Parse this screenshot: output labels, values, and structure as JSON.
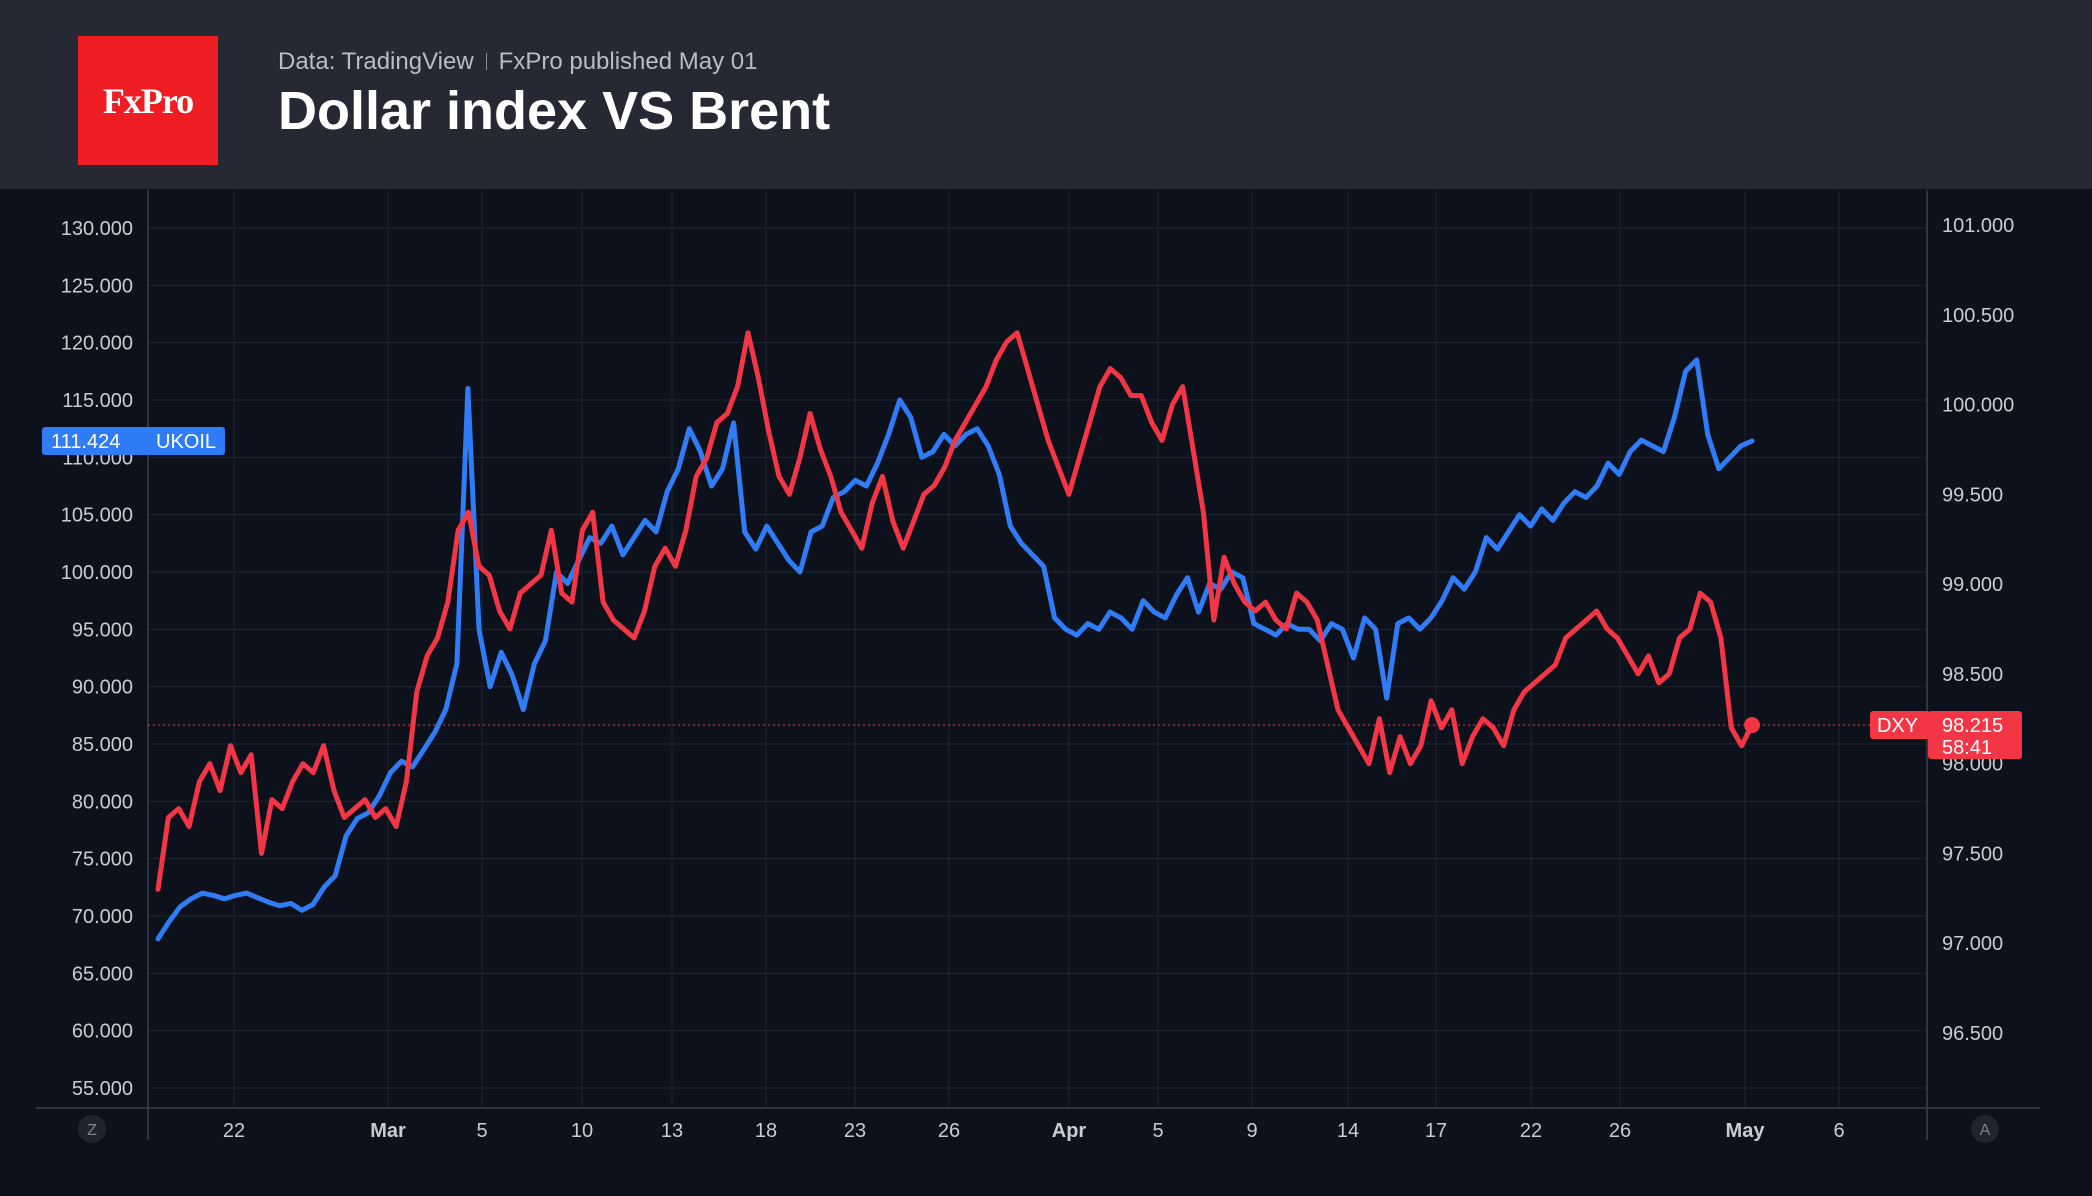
{
  "header": {
    "logo_text": "FxPro",
    "source": "Data: TradingView",
    "published": "FxPro published May 01",
    "title": "Dollar index VS Brent"
  },
  "colors": {
    "dxy": "#f23645",
    "ukoil": "#2f7cf6",
    "background": "#0c111b",
    "header": "#262933",
    "grid": "#1e2530"
  },
  "corner_buttons": {
    "left": "Z",
    "right": "A"
  },
  "chart_data": {
    "type": "line",
    "title": "Dollar index VS Brent",
    "x_ticks": [
      {
        "label": "22",
        "bold": false
      },
      {
        "label": "Mar",
        "bold": true
      },
      {
        "label": "5",
        "bold": false
      },
      {
        "label": "10",
        "bold": false
      },
      {
        "label": "13",
        "bold": false
      },
      {
        "label": "18",
        "bold": false
      },
      {
        "label": "23",
        "bold": false
      },
      {
        "label": "26",
        "bold": false
      },
      {
        "label": "Apr",
        "bold": true
      },
      {
        "label": "5",
        "bold": false
      },
      {
        "label": "9",
        "bold": false
      },
      {
        "label": "14",
        "bold": false
      },
      {
        "label": "17",
        "bold": false
      },
      {
        "label": "22",
        "bold": false
      },
      {
        "label": "26",
        "bold": false
      },
      {
        "label": "May",
        "bold": true
      },
      {
        "label": "6",
        "bold": false
      }
    ],
    "left_axis": {
      "ticks": [
        "130.000",
        "125.000",
        "120.000",
        "115.000",
        "110.000",
        "105.000",
        "100.000",
        "95.000",
        "90.000",
        "85.000",
        "80.000",
        "75.000",
        "70.000",
        "65.000",
        "60.000",
        "55.000"
      ],
      "ylim": [
        55,
        130
      ]
    },
    "right_axis": {
      "ticks": [
        "101.000",
        "100.500",
        "100.000",
        "99.500",
        "99.000",
        "98.500",
        "98.000",
        "97.500",
        "97.000",
        "96.500"
      ],
      "ylim": [
        96.5,
        101
      ]
    },
    "series": [
      {
        "name": "UKOIL",
        "axis": "left",
        "last_value": "111.424",
        "values": [
          68.0,
          69.5,
          70.8,
          71.5,
          72.0,
          71.8,
          71.5,
          71.8,
          72.0,
          71.6,
          71.2,
          70.9,
          71.1,
          70.5,
          71.0,
          72.5,
          73.5,
          77.0,
          78.5,
          79.0,
          80.5,
          82.5,
          83.5,
          83.0,
          84.5,
          86.0,
          88.0,
          92.0,
          116.0,
          95.0,
          90.0,
          93.0,
          91.0,
          88.0,
          92.0,
          94.0,
          100.0,
          99.0,
          101.0,
          103.0,
          102.5,
          104.0,
          101.5,
          103.0,
          104.5,
          103.5,
          107.0,
          109.0,
          112.5,
          110.5,
          107.5,
          109.0,
          113.0,
          103.5,
          102.0,
          104.0,
          102.5,
          101.0,
          100.0,
          103.5,
          104.0,
          106.5,
          107.0,
          108.0,
          107.5,
          109.5,
          112.0,
          115.0,
          113.5,
          110.0,
          110.5,
          112.0,
          111.0,
          112.0,
          112.5,
          111.0,
          108.5,
          104.0,
          102.5,
          101.5,
          100.5,
          96.0,
          95.0,
          94.5,
          95.5,
          95.0,
          96.5,
          96.0,
          95.0,
          97.5,
          96.5,
          96.0,
          98.0,
          99.5,
          96.5,
          99.0,
          98.5,
          100.0,
          99.5,
          95.5,
          95.0,
          94.5,
          95.5,
          95.0,
          95.0,
          94.0,
          95.5,
          95.0,
          92.5,
          96.0,
          95.0,
          89.0,
          95.5,
          96.0,
          95.0,
          96.0,
          97.5,
          99.5,
          98.5,
          100.0,
          103.0,
          102.0,
          103.5,
          105.0,
          104.0,
          105.5,
          104.5,
          106.0,
          107.0,
          106.5,
          107.5,
          109.5,
          108.5,
          110.5,
          111.5,
          111.0,
          110.5,
          113.5,
          117.5,
          118.5,
          112.0,
          109.0,
          110.0,
          111.0,
          111.424
        ]
      },
      {
        "name": "DXY",
        "axis": "right",
        "last_value": "98.215",
        "countdown": "58:41",
        "values": [
          97.3,
          97.7,
          97.75,
          97.65,
          97.9,
          98.0,
          97.85,
          98.1,
          97.95,
          98.05,
          97.5,
          97.8,
          97.75,
          97.9,
          98.0,
          97.95,
          98.1,
          97.85,
          97.7,
          97.75,
          97.8,
          97.7,
          97.75,
          97.65,
          97.9,
          98.4,
          98.6,
          98.7,
          98.9,
          99.3,
          99.4,
          99.1,
          99.05,
          98.85,
          98.75,
          98.95,
          99.0,
          99.05,
          99.3,
          98.95,
          98.9,
          99.3,
          99.4,
          98.9,
          98.8,
          98.75,
          98.7,
          98.85,
          99.1,
          99.2,
          99.1,
          99.3,
          99.6,
          99.7,
          99.9,
          99.95,
          100.1,
          100.4,
          100.15,
          99.85,
          99.6,
          99.5,
          99.7,
          99.95,
          99.75,
          99.6,
          99.4,
          99.3,
          99.2,
          99.45,
          99.6,
          99.35,
          99.2,
          99.35,
          99.5,
          99.55,
          99.65,
          99.8,
          99.9,
          100.0,
          100.1,
          100.25,
          100.35,
          100.4,
          100.2,
          100.0,
          99.8,
          99.65,
          99.5,
          99.7,
          99.9,
          100.1,
          100.2,
          100.15,
          100.05,
          100.05,
          99.9,
          99.8,
          100.0,
          100.1,
          99.75,
          99.4,
          98.8,
          99.15,
          99.0,
          98.9,
          98.85,
          98.9,
          98.8,
          98.75,
          98.95,
          98.9,
          98.8,
          98.55,
          98.3,
          98.2,
          98.1,
          98.0,
          98.25,
          97.95,
          98.15,
          98.0,
          98.1,
          98.35,
          98.2,
          98.3,
          98.0,
          98.15,
          98.25,
          98.2,
          98.1,
          98.3,
          98.4,
          98.45,
          98.5,
          98.55,
          98.7,
          98.75,
          98.8,
          98.85,
          98.75,
          98.7,
          98.6,
          98.5,
          98.6,
          98.45,
          98.5,
          98.7,
          98.75,
          98.95,
          98.9,
          98.7,
          98.2,
          98.1,
          98.215
        ]
      }
    ],
    "current_level_line": {
      "series": "DXY",
      "value": 98.215
    }
  }
}
